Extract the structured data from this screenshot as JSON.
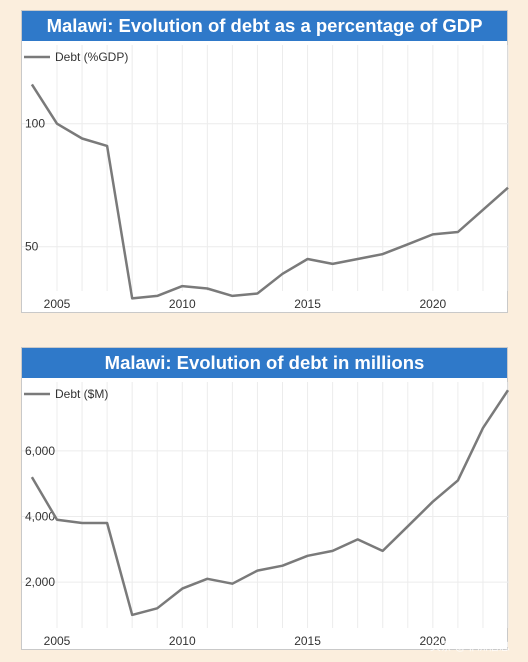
{
  "chart_data": [
    {
      "type": "line",
      "title": "Malawi: Evolution of debt as a percentage of GDP",
      "xlabel": "",
      "ylabel": "",
      "legend": "top-left",
      "grid": true,
      "x_ticks": [
        "2005",
        "2010",
        "2015",
        "2020"
      ],
      "y_ticks": [
        "50",
        "100"
      ],
      "xlim": [
        2005,
        2022.8
      ],
      "ylim": [
        32,
        132
      ],
      "series": [
        {
          "name": "Debt (%GDP)",
          "color": "#7a7a7a",
          "x": [
            2004,
            2005,
            2006,
            2007,
            2008,
            2009,
            2010,
            2011,
            2012,
            2013,
            2014,
            2015,
            2016,
            2017,
            2018,
            2019,
            2020,
            2021,
            2022,
            2023
          ],
          "values": [
            116,
            100,
            94,
            91,
            29,
            30,
            34,
            33,
            30,
            31,
            39,
            45,
            43,
            45,
            47,
            51,
            55,
            56,
            65,
            74
          ]
        }
      ]
    },
    {
      "type": "line",
      "title": "Malawi: Evolution of debt in millions",
      "xlabel": "",
      "ylabel": "",
      "legend": "top-left",
      "grid": true,
      "x_ticks": [
        "2005",
        "2010",
        "2015",
        "2020"
      ],
      "y_ticks": [
        "2,000",
        "4,000",
        "6,000"
      ],
      "xlim": [
        2005,
        2022.8
      ],
      "ylim": [
        600,
        8100
      ],
      "series": [
        {
          "name": "Debt ($M)",
          "color": "#7a7a7a",
          "x": [
            2004,
            2005,
            2006,
            2007,
            2008,
            2009,
            2010,
            2011,
            2012,
            2013,
            2014,
            2015,
            2016,
            2017,
            2018,
            2019,
            2020,
            2021,
            2022,
            2023
          ],
          "values": [
            5200,
            3900,
            3800,
            3800,
            1000,
            1200,
            1800,
            2100,
            1950,
            2350,
            2500,
            2800,
            2950,
            3300,
            2950,
            3700,
            4450,
            5100,
            6700,
            7850
          ]
        }
      ]
    }
  ],
  "watermark": "头条 @非洲信息"
}
